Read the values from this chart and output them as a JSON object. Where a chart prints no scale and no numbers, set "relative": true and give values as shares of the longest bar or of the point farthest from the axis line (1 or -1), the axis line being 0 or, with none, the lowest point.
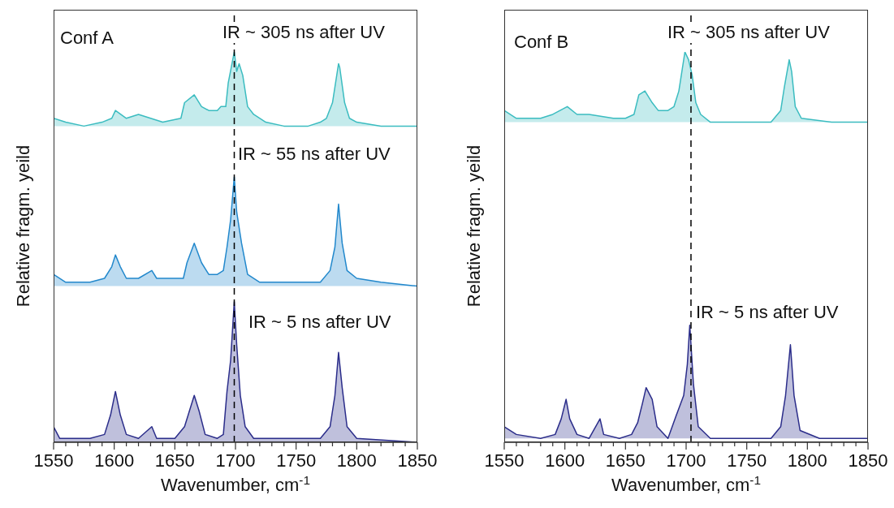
{
  "chart_data": [
    {
      "type": "area",
      "relative": true,
      "xlabel": "Wavenumber, cm$^{-1}$",
      "ylabel": "Relative fragm. yeild",
      "xlim": [
        1550,
        1850
      ],
      "xticks": [
        1550,
        {
          "value": 1560,
          "label": null
        },
        {
          "value": 1570,
          "label": null
        },
        {
          "value": 1580,
          "label": null
        },
        {
          "value": 1590,
          "label": null
        },
        1600,
        {
          "value": 1610,
          "label": null
        },
        {
          "value": 1620,
          "label": null
        },
        {
          "value": 1630,
          "label": null
        },
        {
          "value": 1640,
          "label": null
        },
        1650,
        {
          "value": 1660,
          "label": null
        },
        {
          "value": 1670,
          "label": null
        },
        {
          "value": 1680,
          "label": null
        },
        {
          "value": 1690,
          "label": null
        },
        1700,
        {
          "value": 1710,
          "label": null
        },
        {
          "value": 1720,
          "label": null
        },
        {
          "value": 1730,
          "label": null
        },
        {
          "value": 1740,
          "label": null
        },
        1750,
        {
          "value": 1760,
          "label": null
        },
        {
          "value": 1770,
          "label": null
        },
        {
          "value": 1780,
          "label": null
        },
        {
          "value": 1790,
          "label": null
        },
        1800,
        {
          "value": 1810,
          "label": null
        },
        {
          "value": 1820,
          "label": null
        },
        {
          "value": 1830,
          "label": null
        },
        {
          "value": 1840,
          "label": null
        },
        1850
      ],
      "ref_lines": [
        {
          "axis": "x",
          "value": 1699,
          "line_style": "dashed",
          "color": "#000000"
        }
      ],
      "annotations": [
        "Conf A",
        "IR ~ 305 ns after UV",
        "IR ~ 55 ns after UV",
        "IR ~ 5 ns after UV"
      ],
      "series": [
        {
          "color": "#3bbcc0",
          "x": [
            1550,
            1560,
            1575,
            1590,
            1598,
            1601,
            1610,
            1620,
            1630,
            1640,
            1655,
            1658,
            1666,
            1672,
            1678,
            1685,
            1688,
            1692,
            1694,
            1699,
            1701,
            1703,
            1706,
            1710,
            1715,
            1725,
            1740,
            1760,
            1770,
            1775,
            1780,
            1785,
            1786,
            1790,
            1794,
            1800,
            1820,
            1850
          ],
          "values": [
            0.83,
            0.82,
            0.81,
            0.82,
            0.83,
            0.85,
            0.83,
            0.84,
            0.83,
            0.82,
            0.83,
            0.87,
            0.89,
            0.86,
            0.85,
            0.85,
            0.86,
            0.86,
            0.92,
            1.0,
            0.95,
            0.97,
            0.94,
            0.86,
            0.84,
            0.82,
            0.81,
            0.81,
            0.82,
            0.83,
            0.87,
            0.97,
            0.96,
            0.87,
            0.83,
            0.82,
            0.81,
            0.81
          ]
        },
        {
          "color": "#2288cc",
          "x": [
            1550,
            1560,
            1580,
            1592,
            1598,
            1601,
            1605,
            1610,
            1620,
            1631,
            1635,
            1650,
            1657,
            1660,
            1666,
            1672,
            1678,
            1685,
            1690,
            1693,
            1696,
            1699,
            1701,
            1705,
            1710,
            1720,
            1740,
            1770,
            1778,
            1782,
            1785,
            1788,
            1792,
            1800,
            1820,
            1850
          ],
          "values": [
            0.43,
            0.41,
            0.41,
            0.42,
            0.45,
            0.48,
            0.45,
            0.42,
            0.42,
            0.44,
            0.42,
            0.42,
            0.42,
            0.46,
            0.51,
            0.46,
            0.43,
            0.43,
            0.44,
            0.5,
            0.57,
            0.68,
            0.59,
            0.51,
            0.43,
            0.41,
            0.41,
            0.41,
            0.44,
            0.5,
            0.61,
            0.51,
            0.44,
            0.42,
            0.41,
            0.4
          ]
        },
        {
          "color": "#2b2d8a",
          "x": [
            1550,
            1555,
            1565,
            1580,
            1592,
            1597,
            1601,
            1605,
            1610,
            1620,
            1631,
            1635,
            1650,
            1658,
            1662,
            1666,
            1670,
            1675,
            1685,
            1690,
            1693,
            1696,
            1699,
            1701,
            1704,
            1708,
            1715,
            1740,
            1770,
            1778,
            1782,
            1785,
            1788,
            1792,
            1800,
            1850
          ],
          "values": [
            0.04,
            0.01,
            0.01,
            0.01,
            0.02,
            0.07,
            0.13,
            0.07,
            0.02,
            0.01,
            0.04,
            0.01,
            0.01,
            0.04,
            0.08,
            0.12,
            0.08,
            0.02,
            0.01,
            0.02,
            0.13,
            0.21,
            0.36,
            0.25,
            0.12,
            0.04,
            0.01,
            0.01,
            0.01,
            0.04,
            0.12,
            0.23,
            0.14,
            0.04,
            0.01,
            0.0
          ]
        }
      ]
    },
    {
      "type": "area",
      "relative": true,
      "xlabel": "Wavenumber, cm$^{-1}$",
      "ylabel": "Relative fragm. yeild",
      "xlim": [
        1550,
        1850
      ],
      "xticks": [
        1550,
        {
          "value": 1560,
          "label": null
        },
        {
          "value": 1570,
          "label": null
        },
        {
          "value": 1580,
          "label": null
        },
        {
          "value": 1590,
          "label": null
        },
        1600,
        {
          "value": 1610,
          "label": null
        },
        {
          "value": 1620,
          "label": null
        },
        {
          "value": 1630,
          "label": null
        },
        {
          "value": 1640,
          "label": null
        },
        1650,
        {
          "value": 1660,
          "label": null
        },
        {
          "value": 1670,
          "label": null
        },
        {
          "value": 1680,
          "label": null
        },
        {
          "value": 1690,
          "label": null
        },
        1700,
        {
          "value": 1710,
          "label": null
        },
        {
          "value": 1720,
          "label": null
        },
        {
          "value": 1730,
          "label": null
        },
        {
          "value": 1740,
          "label": null
        },
        1750,
        {
          "value": 1760,
          "label": null
        },
        {
          "value": 1770,
          "label": null
        },
        {
          "value": 1780,
          "label": null
        },
        {
          "value": 1790,
          "label": null
        },
        1800,
        {
          "value": 1810,
          "label": null
        },
        {
          "value": 1820,
          "label": null
        },
        {
          "value": 1830,
          "label": null
        },
        {
          "value": 1840,
          "label": null
        },
        1850
      ],
      "ref_lines": [
        {
          "axis": "x",
          "value": 1704,
          "line_style": "dashed",
          "color": "#000000"
        }
      ],
      "annotations": [
        "Conf B",
        "IR ~ 305 ns after UV",
        "IR ~ 5 ns after UV"
      ],
      "series": [
        {
          "color": "#3bbcc0",
          "x": [
            1550,
            1560,
            1580,
            1590,
            1602,
            1610,
            1620,
            1640,
            1650,
            1657,
            1661,
            1666,
            1672,
            1677,
            1685,
            1690,
            1694,
            1699,
            1702,
            1705,
            1708,
            1712,
            1720,
            1740,
            1770,
            1778,
            1781,
            1785,
            1787,
            1790,
            1795,
            1820,
            1850
          ],
          "values": [
            0.85,
            0.83,
            0.83,
            0.84,
            0.86,
            0.84,
            0.84,
            0.83,
            0.83,
            0.84,
            0.89,
            0.9,
            0.87,
            0.85,
            0.85,
            0.86,
            0.9,
            1.0,
            0.98,
            0.94,
            0.87,
            0.84,
            0.82,
            0.82,
            0.82,
            0.85,
            0.91,
            0.98,
            0.95,
            0.86,
            0.83,
            0.82,
            0.82
          ]
        },
        {
          "color": "#2b2d8a",
          "x": [
            1550,
            1560,
            1580,
            1592,
            1597,
            1601,
            1604,
            1610,
            1620,
            1629,
            1632,
            1645,
            1655,
            1660,
            1664,
            1667,
            1672,
            1676,
            1685,
            1692,
            1698,
            1701,
            1703,
            1706,
            1710,
            1720,
            1770,
            1778,
            1782,
            1786,
            1789,
            1794,
            1810,
            1850
          ],
          "values": [
            0.04,
            0.02,
            0.01,
            0.02,
            0.06,
            0.11,
            0.06,
            0.02,
            0.01,
            0.06,
            0.02,
            0.01,
            0.02,
            0.05,
            0.1,
            0.14,
            0.11,
            0.04,
            0.01,
            0.07,
            0.12,
            0.2,
            0.3,
            0.15,
            0.04,
            0.01,
            0.01,
            0.04,
            0.12,
            0.25,
            0.12,
            0.03,
            0.01,
            0.01
          ]
        }
      ]
    }
  ]
}
